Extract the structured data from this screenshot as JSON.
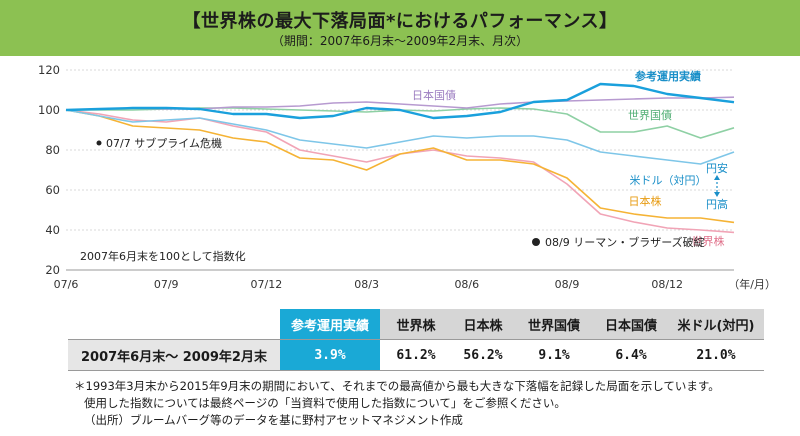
{
  "header": {
    "title": "【世界株の最大下落局面*におけるパフォーマンス】",
    "subtitle": "（期間：2007年6月末～2009年2月末、月次）"
  },
  "chart_data": {
    "type": "line",
    "title": "",
    "xlabel": "（年/月）",
    "ylabel": "",
    "ylim": [
      20,
      120
    ],
    "yticks": [
      20,
      40,
      60,
      80,
      100,
      120
    ],
    "x_ticks": [
      "07/6",
      "07/9",
      "07/12",
      "08/3",
      "08/6",
      "08/9",
      "08/12"
    ],
    "x": [
      "07/6",
      "07/7",
      "07/8",
      "07/9",
      "07/10",
      "07/11",
      "07/12",
      "08/1",
      "08/2",
      "08/3",
      "08/4",
      "08/5",
      "08/6",
      "08/7",
      "08/8",
      "08/9",
      "08/10",
      "08/11",
      "08/12",
      "09/1",
      "09/2"
    ],
    "grid": true,
    "legend": "inline",
    "series": [
      {
        "name": "参考運用実績",
        "color": "#1aa0dc",
        "width": 2.4,
        "values": [
          100,
          100.5,
          101,
          101,
          100.5,
          98,
          98,
          96,
          97,
          101,
          100,
          96,
          97,
          99,
          104,
          105,
          113,
          112,
          108,
          106,
          103.9
        ]
      },
      {
        "name": "日本国債",
        "color": "#b79ad0",
        "width": 1.6,
        "values": [
          100,
          100.5,
          101,
          100.5,
          100.5,
          101.5,
          101.5,
          102,
          103.5,
          104,
          103,
          102,
          101,
          103,
          104,
          104.5,
          105,
          105.5,
          106,
          106,
          106.4
        ]
      },
      {
        "name": "世界国債",
        "color": "#8ed0a4",
        "width": 1.6,
        "values": [
          100,
          100,
          100,
          100.5,
          101,
          101,
          100.5,
          100,
          99.5,
          99,
          100,
          99.5,
          100.5,
          101,
          100.5,
          98,
          89,
          89,
          92,
          86,
          91.1
        ]
      },
      {
        "name": "米ドル（対円）",
        "color": "#7ec6e8",
        "width": 1.6,
        "values": [
          100,
          97,
          94,
          95,
          96,
          93,
          90,
          85,
          83,
          81,
          84,
          87,
          86,
          87,
          87,
          85,
          79,
          77,
          75,
          73,
          79
        ]
      },
      {
        "name": "日本株",
        "color": "#f5b335",
        "width": 1.6,
        "values": [
          100,
          97,
          92,
          91,
          90,
          86,
          84,
          76,
          75,
          70,
          78,
          81,
          75,
          75,
          73,
          66,
          51,
          48,
          46,
          46,
          43.8
        ]
      },
      {
        "name": "世界株",
        "color": "#f1a4b6",
        "width": 1.6,
        "values": [
          100,
          98,
          95,
          94,
          96,
          92,
          89,
          80,
          77,
          74,
          78,
          80,
          77,
          76,
          74,
          63,
          48,
          44,
          41,
          40,
          38.8
        ]
      }
    ],
    "annotations": {
      "subprime": "07/7 サブプライム危機",
      "lehman": "08/9 リーマン・ブラザーズ破綻",
      "index_note": "2007年6月末を100として指数化",
      "yen_weak": "円安",
      "yen_strong": "円高"
    }
  },
  "summary_table": {
    "headers": [
      "参考運用実績",
      "世界株",
      "日本株",
      "世界国債",
      "日本国債",
      "米ドル(対円)"
    ],
    "period": "2007年6月末～ 2009年2月末",
    "values": [
      "3.9%",
      "61.2%",
      "56.2%",
      "9.1%",
      "6.4%",
      "21.0%"
    ]
  },
  "notes": {
    "line1": "＊1993年3月末から2015年9月末の期間において、それまでの最高値から最も大きな下落幅を記録した局面を示しています。",
    "line2": "使用した指数については最終ページの「当資料で使用した指数について」をご参照ください。",
    "line3": "（出所）ブルームバーグ等のデータを基に野村アセットマネジメント作成"
  },
  "colors": {
    "header_bg": "#8cc152",
    "accent": "#1aa9d6"
  }
}
